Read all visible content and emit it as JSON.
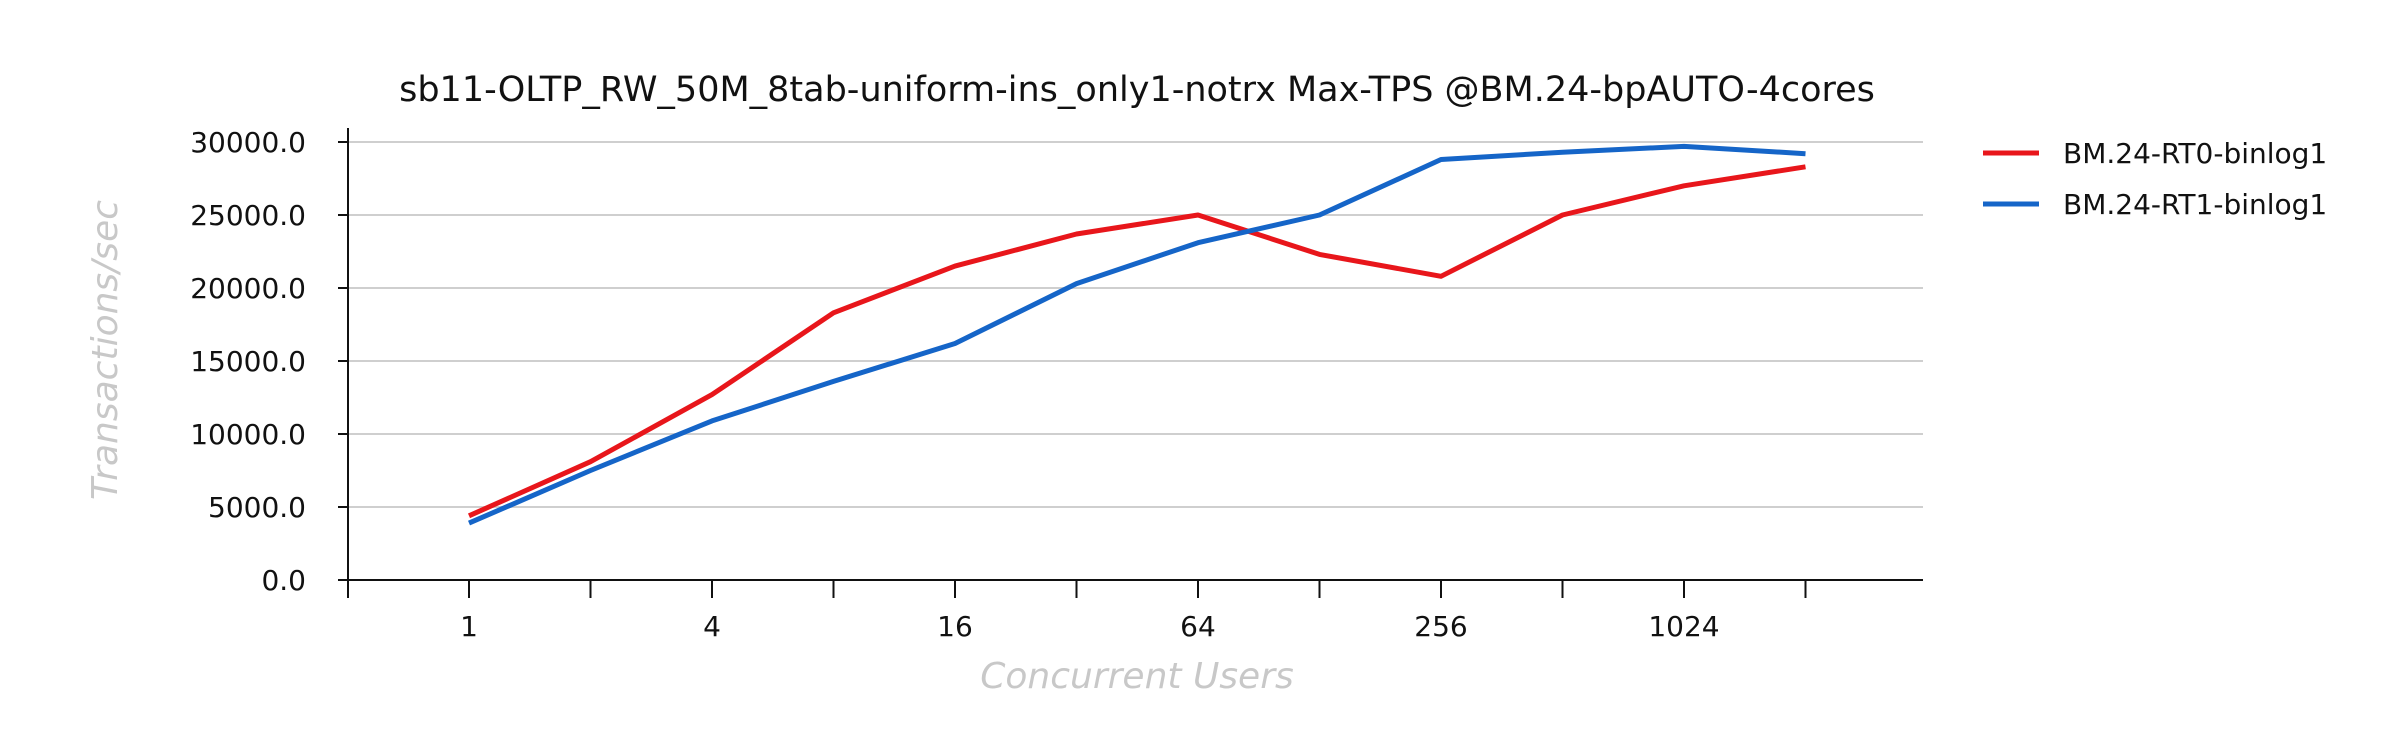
{
  "chart_data": {
    "type": "line",
    "title": "sb11-OLTP_RW_50M_8tab-uniform-ins_only1-notrx Max-TPS @BM.24-bpAUTO-4cores",
    "xlabel": "Concurrent Users",
    "ylabel": "Transactions/sec",
    "x": [
      1,
      2,
      4,
      8,
      16,
      32,
      64,
      128,
      256,
      512,
      1024,
      2048
    ],
    "x_scale": "log2",
    "xticks": [
      1,
      4,
      16,
      64,
      256,
      1024
    ],
    "xtick_labels": [
      "1",
      "4",
      "16",
      "64",
      "256",
      "1024"
    ],
    "ylim": [
      0,
      30000
    ],
    "yticks": [
      0,
      5000,
      10000,
      15000,
      20000,
      25000,
      30000
    ],
    "ytick_labels": [
      "0.0",
      "5000.0",
      "10000.0",
      "15000.0",
      "20000.0",
      "25000.0",
      "30000.0"
    ],
    "grid": "horizontal",
    "legend_position": "right",
    "series": [
      {
        "name": "BM.24-RT0-binlog1",
        "color": "#e8161b",
        "values": [
          4400,
          8100,
          12700,
          18300,
          21500,
          23700,
          25000,
          22300,
          20800,
          25000,
          27000,
          28300
        ]
      },
      {
        "name": "BM.24-RT1-binlog1",
        "color": "#1565c8",
        "values": [
          3900,
          7500,
          10900,
          13600,
          16200,
          20300,
          23100,
          25000,
          28800,
          29300,
          29700,
          29200
        ]
      }
    ]
  }
}
